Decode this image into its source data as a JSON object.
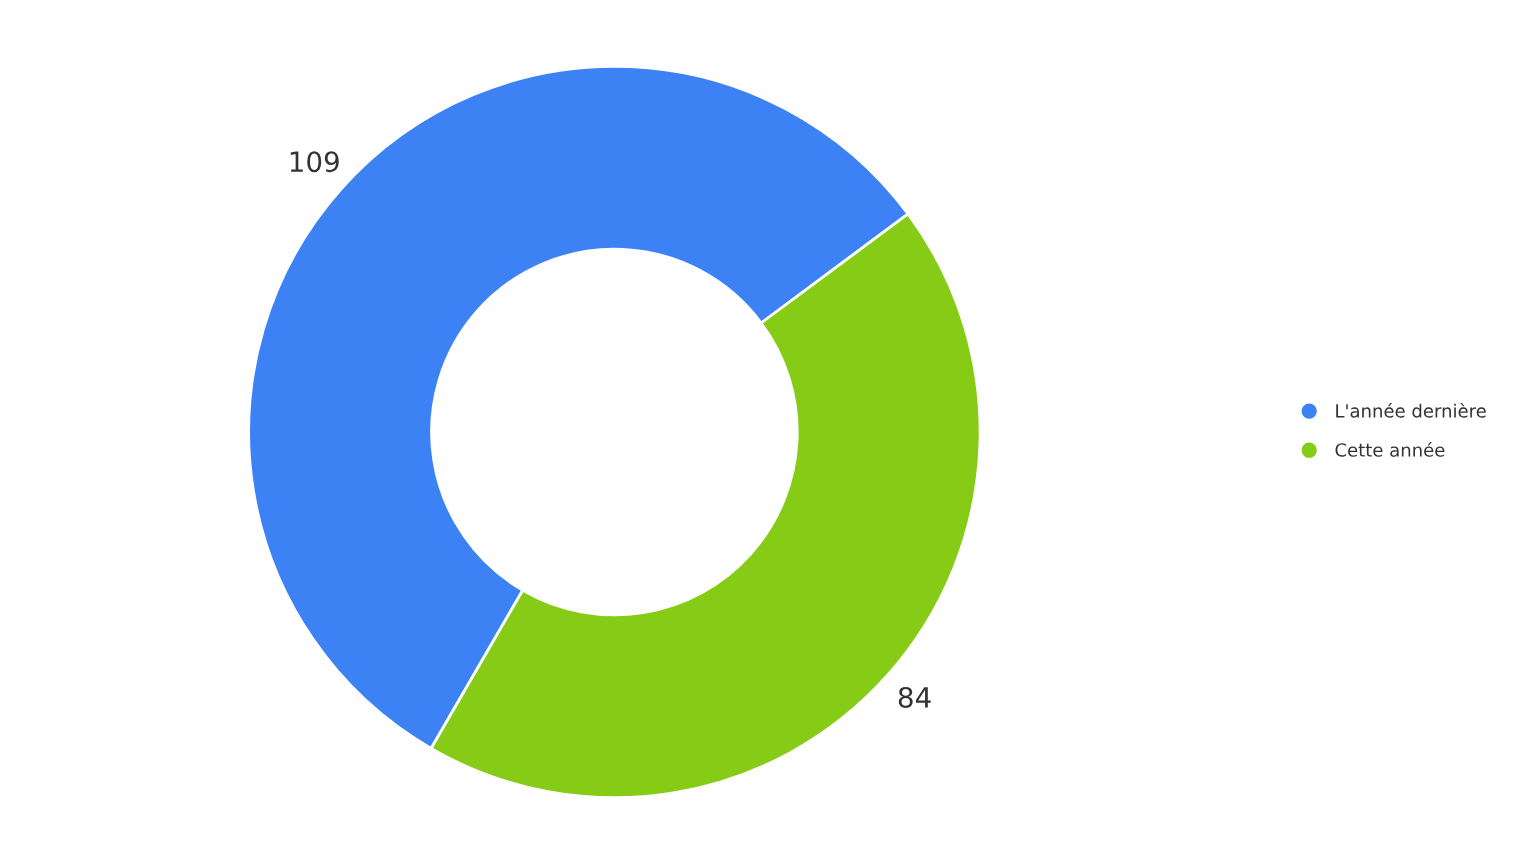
{
  "chart_data": {
    "type": "donut",
    "categories": [
      "L'année dernière",
      "Cette année"
    ],
    "values": [
      109,
      84
    ],
    "colors": [
      "#3d82f5",
      "#86cb16"
    ],
    "data_labels": true,
    "legend": "right"
  }
}
